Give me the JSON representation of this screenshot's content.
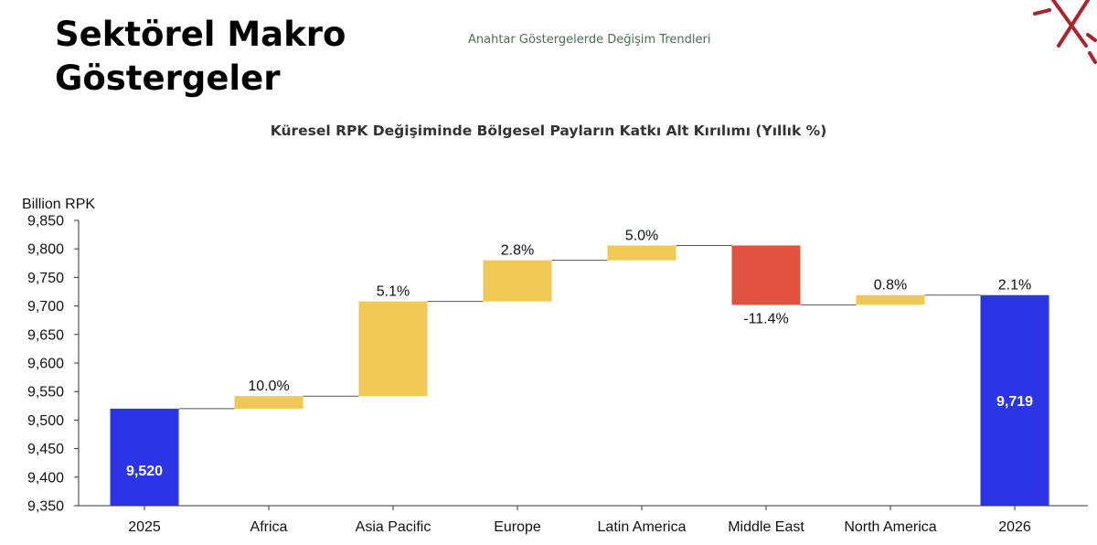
{
  "header": {
    "title_line1": "Sektörel Makro",
    "title_line2": "Göstergeler",
    "subtitle": "Anahtar Göstergelerde Değişim Trendleri"
  },
  "colors": {
    "total_bar": "#2b35e6",
    "increase_bar": "#f0c955",
    "decrease_bar": "#e1533f",
    "connector": "#555555",
    "logo": "#a8252c"
  },
  "chart_data": {
    "type": "waterfall",
    "title": "Küresel RPK Değişiminde Bölgesel Payların Katkı Alt Kırılımı (Yıllık %)",
    "ylabel": "Billion RPK",
    "ylim": [
      9350,
      9850
    ],
    "yticks": [
      9350,
      9400,
      9450,
      9500,
      9550,
      9600,
      9650,
      9700,
      9750,
      9800,
      9850
    ],
    "ytick_labels": [
      "9,350",
      "9,400",
      "9,450",
      "9,500",
      "9,550",
      "9,600",
      "9,650",
      "9,700",
      "9,750",
      "9,800",
      "9,850"
    ],
    "categories": [
      "2025",
      "Africa",
      "Asia Pacific",
      "Europe",
      "Latin America",
      "Middle East",
      "North America",
      "2026"
    ],
    "bars": [
      {
        "kind": "total",
        "start": 9350,
        "end": 9520,
        "label": "9,520"
      },
      {
        "kind": "increase",
        "start": 9520,
        "end": 9542,
        "label": "10.0%"
      },
      {
        "kind": "increase",
        "start": 9542,
        "end": 9708,
        "label": "5.1%"
      },
      {
        "kind": "increase",
        "start": 9708,
        "end": 9780,
        "label": "2.8%"
      },
      {
        "kind": "increase",
        "start": 9780,
        "end": 9806,
        "label": "5.0%"
      },
      {
        "kind": "decrease",
        "start": 9806,
        "end": 9702,
        "label": "-11.4%"
      },
      {
        "kind": "increase",
        "start": 9702,
        "end": 9719,
        "label": "0.8%"
      },
      {
        "kind": "total",
        "start": 9350,
        "end": 9719,
        "label": "9,719",
        "top_label": "2.1%"
      }
    ],
    "grid": false,
    "legend": "none"
  }
}
